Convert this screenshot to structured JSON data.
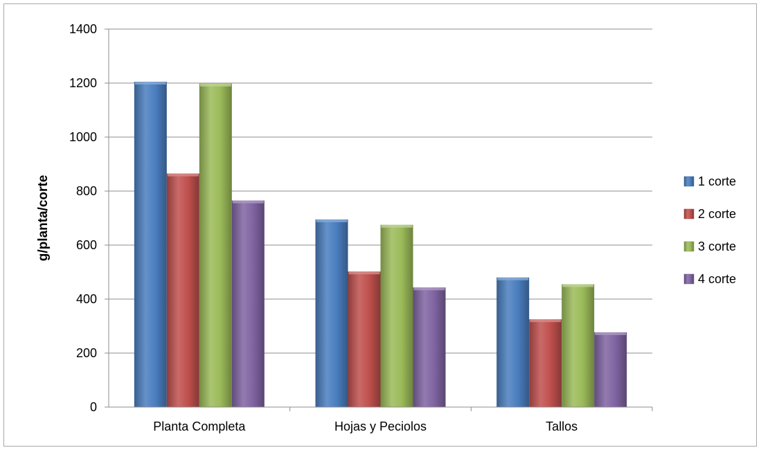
{
  "chart_data": {
    "type": "bar",
    "title": "",
    "xlabel": "",
    "ylabel": "g/planta/corte",
    "ylim": [
      0,
      1400
    ],
    "yticks": [
      0,
      200,
      400,
      600,
      800,
      1000,
      1200,
      1400
    ],
    "grid": true,
    "legend_position": "right",
    "categories": [
      "Planta Completa",
      "Hojas y Peciolos",
      "Tallos"
    ],
    "series": [
      {
        "name": "1 corte",
        "color": "#4a7ebf",
        "values": [
          1205,
          695,
          480
        ]
      },
      {
        "name": "2 corte",
        "color": "#c0504d",
        "values": [
          865,
          502,
          325
        ]
      },
      {
        "name": "3 corte",
        "color": "#9bbb59",
        "values": [
          1198,
          675,
          455
        ]
      },
      {
        "name": "4 corte",
        "color": "#8064a2",
        "values": [
          765,
          443,
          277
        ]
      }
    ]
  }
}
